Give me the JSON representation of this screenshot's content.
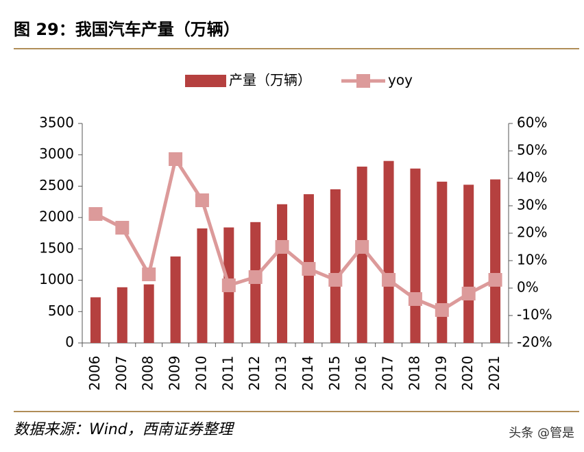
{
  "title": "图 29：我国汽车产量（万辆）",
  "source": "数据来源：Wind，西南证券整理",
  "watermark": "头条 @管是",
  "chart_data": {
    "type": "bar-line",
    "categories": [
      "2006",
      "2007",
      "2008",
      "2009",
      "2010",
      "2011",
      "2012",
      "2013",
      "2014",
      "2015",
      "2016",
      "2017",
      "2018",
      "2019",
      "2020",
      "2021"
    ],
    "series": [
      {
        "name": "产量（万辆）",
        "type": "bar",
        "color": "#b5403f",
        "values": [
          728,
          888,
          934,
          1379,
          1826,
          1842,
          1927,
          2212,
          2372,
          2450,
          2812,
          2902,
          2781,
          2572,
          2523,
          2608
        ]
      },
      {
        "name": "yoy",
        "type": "line",
        "axis": "y2",
        "color": "#dc9a9a",
        "values": [
          27,
          22,
          5,
          47,
          32,
          1,
          4,
          15,
          7,
          3,
          15,
          3,
          -4,
          -8,
          -2,
          3
        ]
      }
    ],
    "ylim": [
      0,
      3500
    ],
    "yticks": [
      0,
      500,
      1000,
      1500,
      2000,
      2500,
      3000,
      3500
    ],
    "y2lim": [
      -20,
      60
    ],
    "y2ticks": [
      {
        "value": -20,
        "label": "-20%"
      },
      {
        "value": -10,
        "label": "-10%"
      },
      {
        "value": 0,
        "label": "0%"
      },
      {
        "value": 10,
        "label": "10%"
      },
      {
        "value": 20,
        "label": "20%"
      },
      {
        "value": 30,
        "label": "30%"
      },
      {
        "value": 40,
        "label": "40%"
      },
      {
        "value": 50,
        "label": "50%"
      },
      {
        "value": 60,
        "label": "60%"
      }
    ],
    "legend": "top"
  }
}
